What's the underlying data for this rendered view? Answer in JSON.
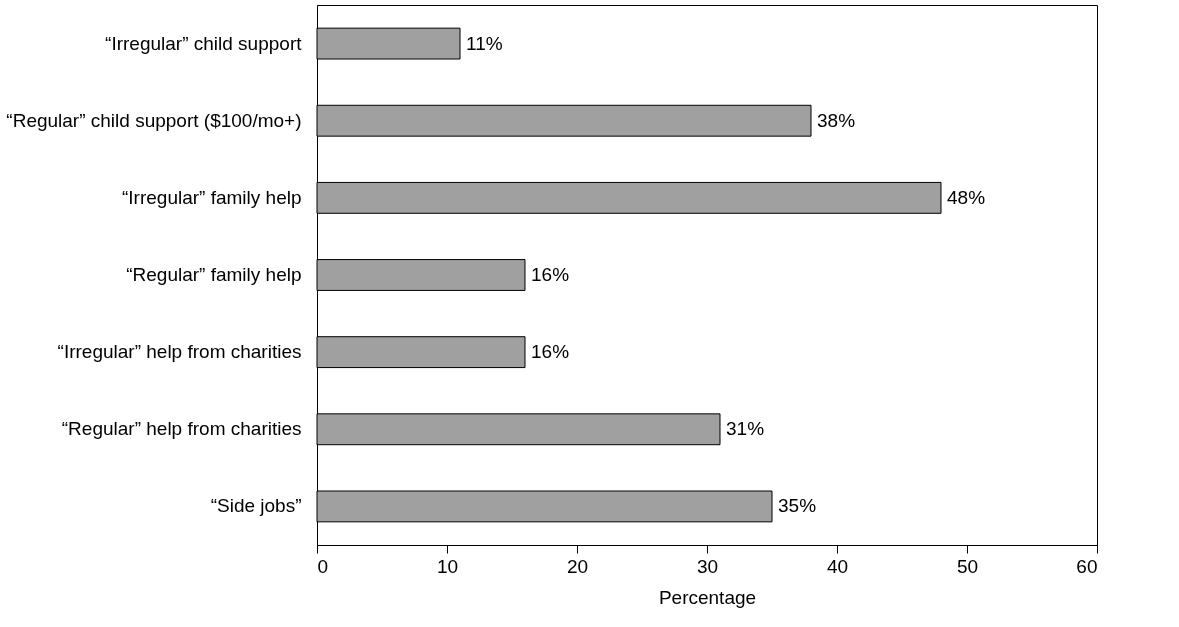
{
  "chart_data": {
    "type": "bar",
    "orientation": "horizontal",
    "xlabel": "Percentage",
    "categories": [
      "“Irregular” child support",
      "“Regular” child support ($100/mo+)",
      "“Irregular” family help",
      "“Regular” family help",
      "“Irregular” help from charities",
      "“Regular” help from charities",
      "“Side jobs”"
    ],
    "values": [
      11,
      38,
      48,
      16,
      16,
      31,
      35
    ],
    "value_labels": [
      "11%",
      "38%",
      "48%",
      "16%",
      "16%",
      "31%",
      "35%"
    ],
    "color": "#a0a0a0",
    "xlim": [
      0,
      60
    ],
    "xticks": [
      0,
      10,
      20,
      30,
      40,
      50,
      60
    ],
    "grid": false
  }
}
